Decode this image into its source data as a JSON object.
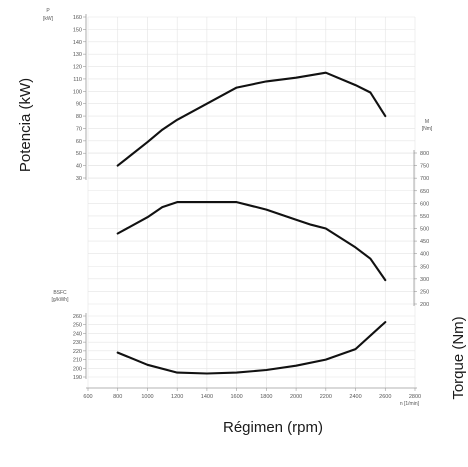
{
  "chart_data": {
    "type": "line",
    "xlabel": "Régimen (rpm)",
    "x_unit": "n [1/min]",
    "xlim": [
      600,
      2800
    ],
    "x_ticks": [
      600,
      800,
      1000,
      1200,
      1400,
      1600,
      1800,
      2000,
      2200,
      2400,
      2600,
      2800
    ],
    "panels": [
      {
        "id": "power",
        "ylabel": "Potencia (kW)",
        "axis_symbol": "P",
        "axis_unit": "[kW]",
        "axis_side": "left",
        "ylim": [
          30,
          160
        ],
        "y_ticks": [
          30,
          40,
          50,
          60,
          70,
          80,
          90,
          100,
          110,
          120,
          130,
          140,
          150,
          160
        ],
        "series": {
          "x": [
            800,
            1000,
            1100,
            1200,
            1400,
            1600,
            1800,
            2000,
            2100,
            2200,
            2400,
            2500,
            2600
          ],
          "values": [
            40,
            59,
            69,
            77,
            90,
            103,
            108,
            111,
            113,
            115,
            105,
            99,
            80
          ]
        }
      },
      {
        "id": "torque",
        "ylabel": "Torque (Nm)",
        "axis_symbol": "M",
        "axis_unit": "[Nm]",
        "axis_side": "right",
        "ylim": [
          200,
          800
        ],
        "y_ticks": [
          200,
          250,
          300,
          350,
          400,
          450,
          500,
          550,
          600,
          650,
          700,
          750,
          800
        ],
        "series": {
          "x": [
            800,
            1000,
            1100,
            1200,
            1400,
            1600,
            1800,
            2000,
            2100,
            2200,
            2400,
            2500,
            2600
          ],
          "values": [
            480,
            545,
            585,
            605,
            605,
            605,
            575,
            535,
            515,
            500,
            425,
            380,
            295
          ]
        }
      },
      {
        "id": "bsfc",
        "ylabel": "",
        "axis_symbol": "BSFC",
        "axis_unit": "[g/kWh]",
        "axis_side": "left",
        "ylim": [
          190,
          260
        ],
        "y_ticks": [
          190,
          200,
          210,
          220,
          230,
          240,
          250,
          260
        ],
        "series": {
          "x": [
            800,
            1000,
            1200,
            1400,
            1600,
            1800,
            2000,
            2200,
            2400,
            2600
          ],
          "values": [
            218,
            204,
            195,
            194,
            195,
            198,
            203,
            210,
            222,
            253
          ]
        }
      }
    ],
    "grid": true,
    "legend": "none"
  }
}
